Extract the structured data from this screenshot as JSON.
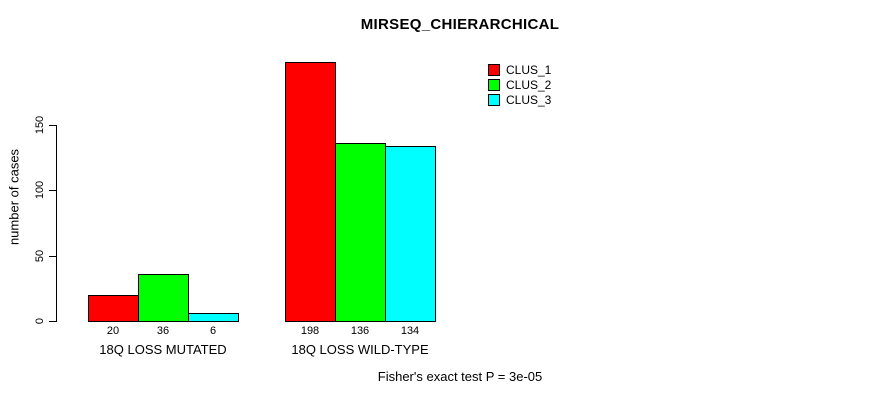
{
  "chart_data": {
    "type": "bar",
    "title": "MIRSEQ_CHIERARCHICAL",
    "xlabel": "",
    "ylabel": "number of cases",
    "ylim": [
      0,
      150
    ],
    "yticks": [
      0,
      50,
      100,
      150
    ],
    "grid": false,
    "legend_position": "top-right",
    "value_labels_shown": true,
    "categories": [
      "18Q LOSS MUTATED",
      "18Q LOSS WILD-TYPE"
    ],
    "series": [
      {
        "name": "CLUS_1",
        "color": "#ff0000",
        "values": [
          20,
          198
        ]
      },
      {
        "name": "CLUS_2",
        "color": "#00ff00",
        "values": [
          36,
          136
        ]
      },
      {
        "name": "CLUS_3",
        "color": "#00ffff",
        "values": [
          6,
          134
        ]
      }
    ],
    "annotation": "Fisher's exact test P = 3e-05"
  },
  "colors": {
    "background": "#ffffff",
    "axis": "#000000",
    "bar_border": "#000000",
    "text": "#000000"
  }
}
